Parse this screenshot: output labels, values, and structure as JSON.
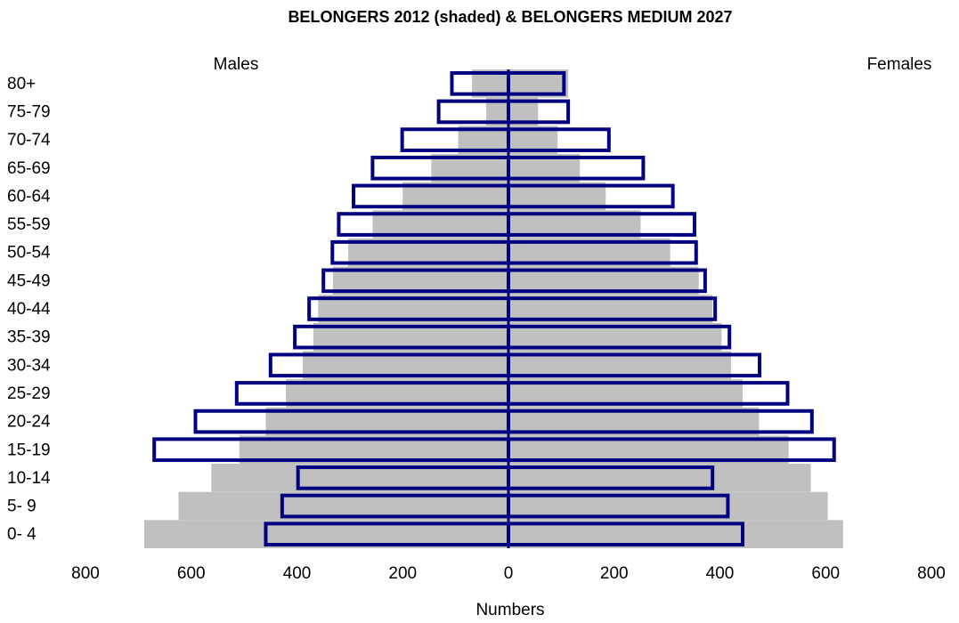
{
  "chart_data": {
    "type": "pyramid",
    "title": "BELONGERS 2012 (shaded) & BELONGERS MEDIUM 2027",
    "x_label": "Numbers",
    "categories": [
      "0- 4",
      "5- 9",
      "10-14",
      "15-19",
      "20-24",
      "25-29",
      "30-34",
      "35-39",
      "40-44",
      "45-49",
      "50-54",
      "55-59",
      "60-64",
      "65-69",
      "70-74",
      "75-79",
      "80+"
    ],
    "shaded_color": "#c0c0c0",
    "outline_color": "#000080",
    "males": {
      "label": "Males",
      "shaded": [
        -689,
        -624,
        -562,
        -509,
        -459,
        -421,
        -389,
        -369,
        -360,
        -332,
        -303,
        -257,
        -200,
        -146,
        -95,
        -42,
        -69
      ],
      "outline": [
        -459,
        -428,
        -398,
        -670,
        -592,
        -514,
        -450,
        -404,
        -377,
        -350,
        -333,
        -321,
        -293,
        -257,
        -201,
        -132,
        -107
      ]
    },
    "females": {
      "label": "Females",
      "shaded": [
        633,
        604,
        572,
        530,
        474,
        443,
        421,
        403,
        386,
        360,
        306,
        250,
        184,
        135,
        93,
        56,
        113
      ],
      "outline": [
        443,
        415,
        386,
        616,
        574,
        528,
        475,
        418,
        391,
        372,
        355,
        352,
        311,
        255,
        190,
        113,
        105
      ]
    },
    "xlim": [
      -800,
      800
    ],
    "xticks": [
      {
        "value": -800,
        "label": "800"
      },
      {
        "value": -600,
        "label": "600"
      },
      {
        "value": -400,
        "label": "400"
      },
      {
        "value": -200,
        "label": "200"
      },
      0,
      200,
      400,
      600,
      800
    ]
  }
}
